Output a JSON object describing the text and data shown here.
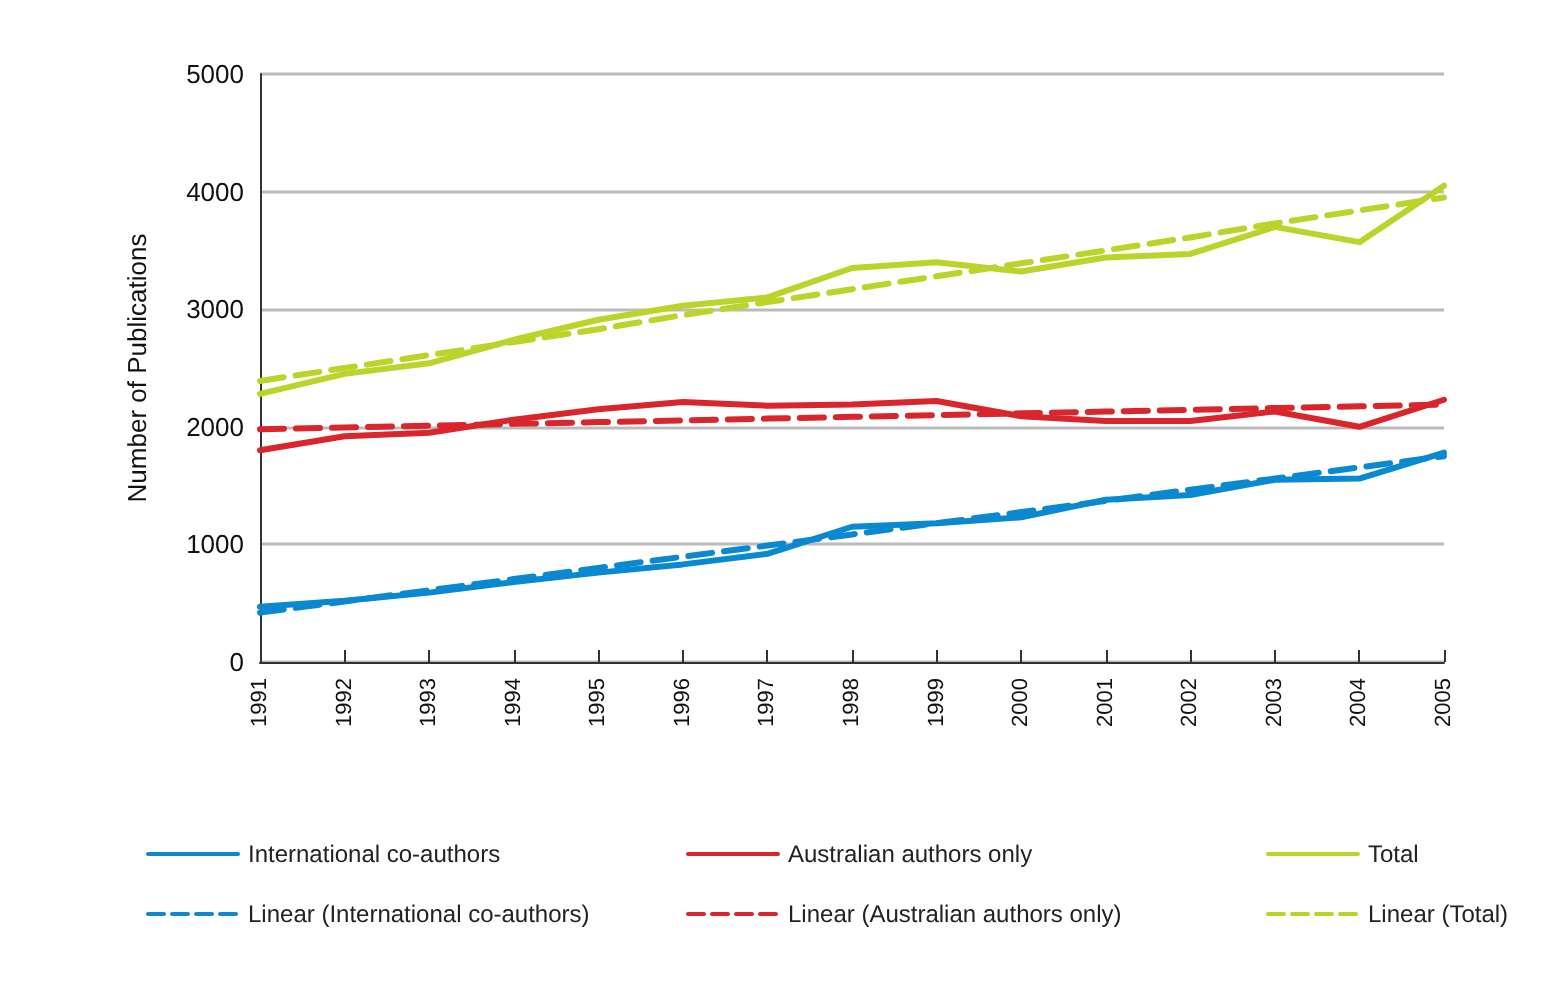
{
  "chart_data": {
    "type": "line",
    "ylabel": "Number of Publications",
    "x": [
      1991,
      1992,
      1993,
      1994,
      1995,
      1996,
      1997,
      1998,
      1999,
      2000,
      2001,
      2002,
      2003,
      2004,
      2005
    ],
    "xlim": [
      1991,
      2005
    ],
    "xticks": [
      1991,
      1992,
      1993,
      1994,
      1995,
      1996,
      1997,
      1998,
      1999,
      2000,
      2001,
      2002,
      2003,
      2004,
      2005
    ],
    "ylim": [
      0,
      5000
    ],
    "yticks": [
      0,
      1000,
      2000,
      3000,
      4000,
      5000
    ],
    "grid": "y",
    "legend": "bottom",
    "marker": "none",
    "series": [
      {
        "name": "International co-authors",
        "color": "#0a88d0",
        "values": [
          470,
          520,
          590,
          680,
          760,
          830,
          920,
          1150,
          1180,
          1230,
          1380,
          1420,
          1550,
          1560,
          1780
        ]
      },
      {
        "name": "Australian authors only",
        "color": "#d9252b",
        "values": [
          1800,
          1920,
          1950,
          2060,
          2150,
          2210,
          2180,
          2190,
          2220,
          2090,
          2050,
          2050,
          2130,
          2000,
          2230
        ]
      },
      {
        "name": "Total",
        "color": "#bcd42a",
        "values": [
          2280,
          2450,
          2540,
          2740,
          2910,
          3030,
          3100,
          3350,
          3400,
          3320,
          3440,
          3470,
          3700,
          3570,
          4050
        ]
      },
      {
        "name": "Linear (International co-authors)",
        "color": "#0a88d0",
        "line_style": "dashed",
        "values": [
          420,
          515,
          610,
          705,
          800,
          895,
          990,
          1085,
          1180,
          1275,
          1370,
          1465,
          1560,
          1655,
          1750
        ]
      },
      {
        "name": "Linear (Australian authors only)",
        "color": "#d9252b",
        "line_style": "dashed",
        "values": [
          1980,
          1995,
          2010,
          2025,
          2040,
          2055,
          2070,
          2085,
          2100,
          2115,
          2130,
          2145,
          2160,
          2175,
          2190
        ]
      },
      {
        "name": "Linear (Total)",
        "color": "#bcd42a",
        "line_style": "dashed",
        "values": [
          2390,
          2500,
          2610,
          2720,
          2830,
          2950,
          3060,
          3170,
          3280,
          3390,
          3500,
          3610,
          3730,
          3840,
          3950
        ]
      }
    ]
  }
}
